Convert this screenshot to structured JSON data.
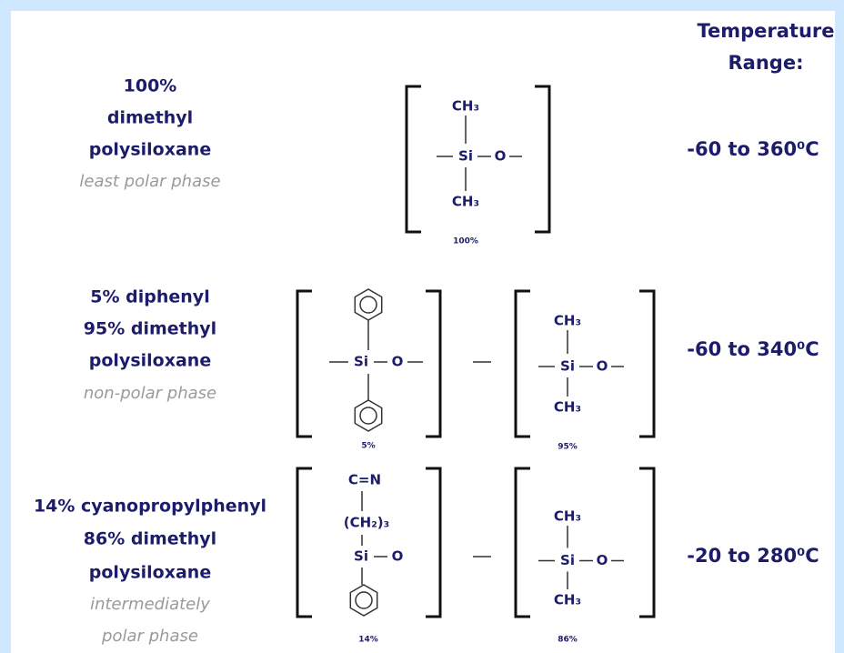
{
  "header": {
    "lines": [
      "Temperature",
      "Range:"
    ]
  },
  "rows": [
    {
      "name_lines": [
        "100%",
        "dimethyl",
        "polysiloxane"
      ],
      "phase_lines": [
        "least polar phase"
      ],
      "temperature": "-60 to 360⁰C",
      "units": [
        {
          "atoms": [
            "CH₃",
            "Si",
            "O",
            "CH₃"
          ],
          "percent": "100%"
        }
      ]
    },
    {
      "name_lines": [
        "5% diphenyl",
        "95% dimethyl",
        "polysiloxane"
      ],
      "phase_lines": [
        "non-polar phase"
      ],
      "temperature": "-60 to 340⁰C",
      "units": [
        {
          "atoms": [
            "Si",
            "O"
          ],
          "percent": "5%"
        },
        {
          "atoms": [
            "CH₃",
            "Si",
            "O",
            "CH₃"
          ],
          "percent": "95%"
        }
      ]
    },
    {
      "name_lines": [
        "14% cyanopropylphenyl",
        "86% dimethyl",
        "polysiloxane"
      ],
      "phase_lines": [
        "intermediately",
        "polar phase"
      ],
      "temperature": "-20 to 280⁰C",
      "units": [
        {
          "atoms": [
            "C=N",
            "(CH₂)₃",
            "Si",
            "O"
          ],
          "percent": "14%"
        },
        {
          "atoms": [
            "CH₃",
            "Si",
            "O",
            "CH₃"
          ],
          "percent": "86%"
        }
      ]
    }
  ]
}
